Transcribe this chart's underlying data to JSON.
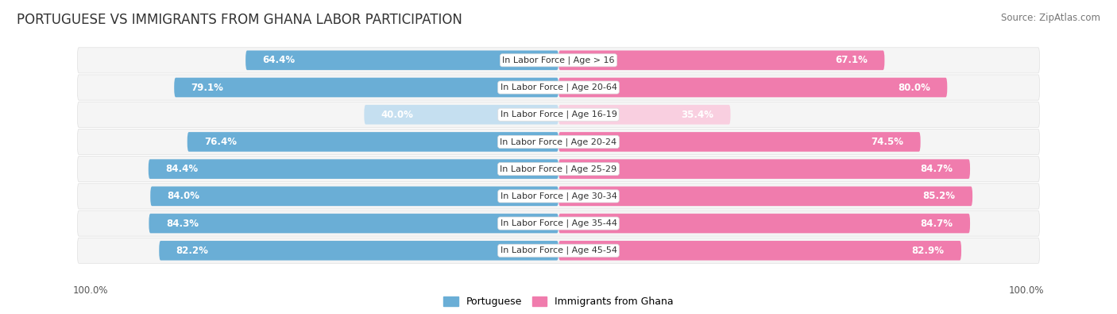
{
  "title": "PORTUGUESE VS IMMIGRANTS FROM GHANA LABOR PARTICIPATION",
  "source": "Source: ZipAtlas.com",
  "categories": [
    "In Labor Force | Age > 16",
    "In Labor Force | Age 20-64",
    "In Labor Force | Age 16-19",
    "In Labor Force | Age 20-24",
    "In Labor Force | Age 25-29",
    "In Labor Force | Age 30-34",
    "In Labor Force | Age 35-44",
    "In Labor Force | Age 45-54"
  ],
  "portuguese_values": [
    64.4,
    79.1,
    40.0,
    76.4,
    84.4,
    84.0,
    84.3,
    82.2
  ],
  "ghana_values": [
    67.1,
    80.0,
    35.4,
    74.5,
    84.7,
    85.2,
    84.7,
    82.9
  ],
  "portuguese_color": "#6aaed6",
  "ghana_color": "#f07cad",
  "portuguese_light_color": "#c5dff0",
  "ghana_light_color": "#f9cfe0",
  "background_color": "#ffffff",
  "row_bg_color": "#f5f5f5",
  "row_border_color": "#e0e0e0",
  "axis_label_left": "100.0%",
  "axis_label_right": "100.0%",
  "legend_portuguese": "Portuguese",
  "legend_ghana": "Immigrants from Ghana",
  "title_fontsize": 12,
  "source_fontsize": 8.5,
  "bar_label_fontsize": 8.5,
  "category_fontsize": 8,
  "legend_fontsize": 9
}
